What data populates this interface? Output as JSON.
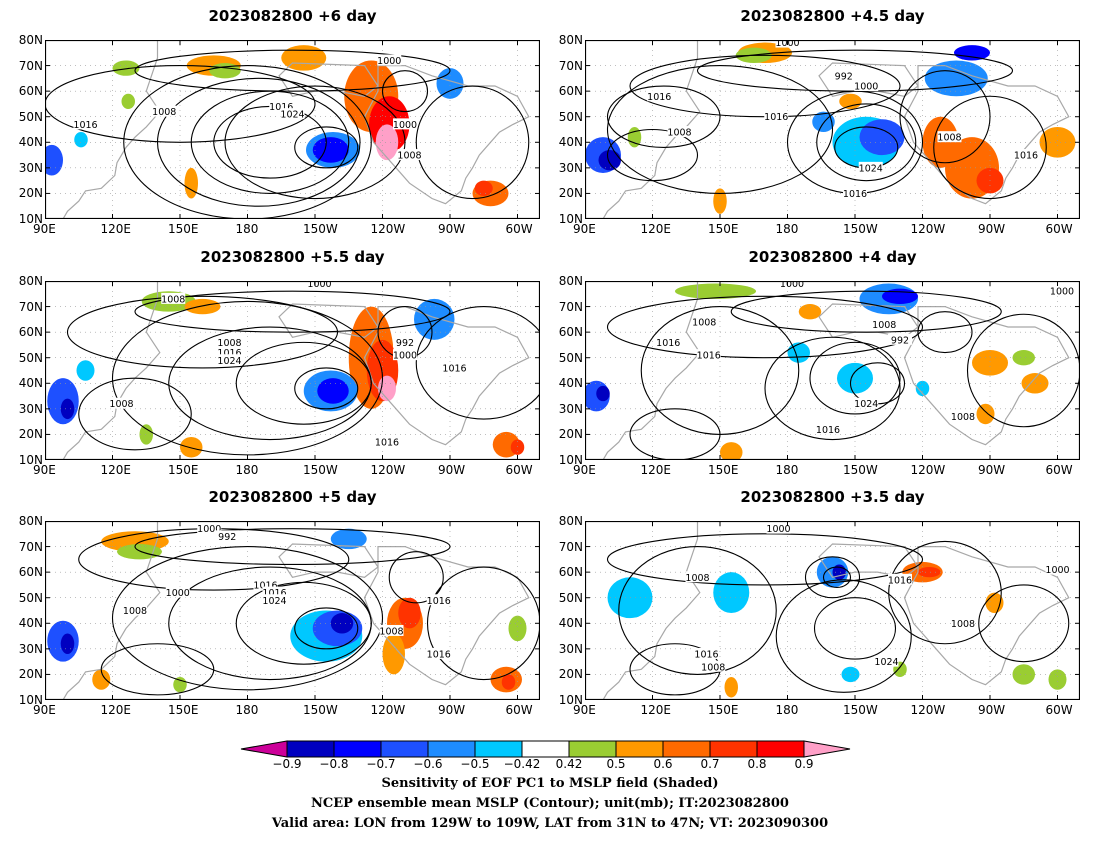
{
  "panels": [
    {
      "title": "2023082800  +6 day",
      "labels": [
        "1016",
        "1008",
        "1016",
        "1024",
        "1000",
        "1000",
        "1008"
      ]
    },
    {
      "title": "2023082800  +4.5 day",
      "labels": [
        "1000",
        "992",
        "1000",
        "1016",
        "1016",
        "1008",
        "1024",
        "1016",
        "1008",
        "1016"
      ]
    },
    {
      "title": "2023082800  +5.5 day",
      "labels": [
        "1008",
        "1000",
        "1008",
        "1016",
        "1024",
        "992",
        "1000",
        "1016",
        "1008",
        "1016"
      ]
    },
    {
      "title": "2023082800  +4 day",
      "labels": [
        "1000",
        "1008",
        "1016",
        "992",
        "1008",
        "1016",
        "1024",
        "1008",
        "1016",
        "1000"
      ]
    },
    {
      "title": "2023082800  +5 day",
      "labels": [
        "1000",
        "992",
        "1016",
        "1008",
        "1000",
        "1016",
        "1024",
        "1008",
        "1016",
        "1016"
      ]
    },
    {
      "title": "2023082800  +3.5 day",
      "labels": [
        "1000",
        "1008",
        "1016",
        "1016",
        "1024",
        "1008",
        "1000",
        "1008"
      ]
    }
  ],
  "axes": {
    "lat_labels": [
      "80N",
      "70N",
      "60N",
      "50N",
      "40N",
      "30N",
      "20N",
      "10N"
    ],
    "lon_labels": [
      "90E",
      "120E",
      "150E",
      "180",
      "150W",
      "120W",
      "90W",
      "60W"
    ]
  },
  "colorbar": {
    "labels": [
      "−0.9",
      "−0.8",
      "−0.7",
      "−0.6",
      "−0.5",
      "−0.42",
      "0.42",
      "0.5",
      "0.6",
      "0.7",
      "0.8",
      "0.9"
    ],
    "colors": [
      "#cc0099",
      "#0000c0",
      "#0000ff",
      "#1e50ff",
      "#1e8cff",
      "#00c8ff",
      "#ffffff",
      "#9acd32",
      "#ff9900",
      "#ff6a00",
      "#ff3300",
      "#ff0000",
      "#ffa0c8"
    ]
  },
  "captions": [
    "Sensitivity of EOF PC1 to MSLP field (Shaded)",
    "NCEP ensemble mean MSLP (Contour); unit(mb); IT:2023082800",
    "Valid area: LON from 129W to 109W, LAT from 31N to 47N; VT: 2023090300"
  ]
}
